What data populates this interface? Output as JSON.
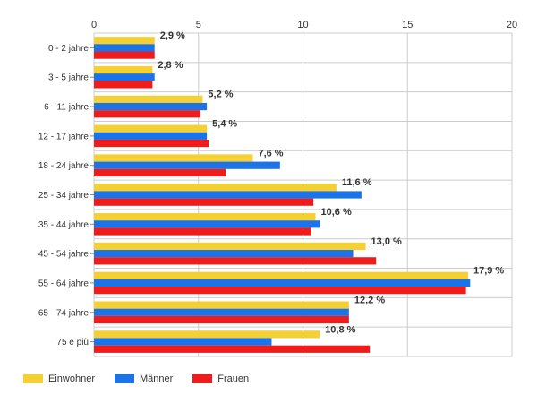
{
  "chart_data": {
    "type": "bar",
    "orientation": "horizontal",
    "categories": [
      "0 - 2 jahre",
      "3 - 5 jahre",
      "6 - 11 jahre",
      "12 - 17 jahre",
      "18 - 24 jahre",
      "25 - 34 jahre",
      "35 - 44 jahre",
      "45 - 54 jahre",
      "55 - 64 jahre",
      "65 - 74 jahre",
      "75 e più"
    ],
    "series": [
      {
        "name": "Einwohner",
        "color": "#f5d033",
        "values": [
          2.9,
          2.8,
          5.2,
          5.4,
          7.6,
          11.6,
          10.6,
          13.0,
          17.9,
          12.2,
          10.8
        ]
      },
      {
        "name": "Männer",
        "color": "#1a73e8",
        "values": [
          2.9,
          2.9,
          5.4,
          5.4,
          8.9,
          12.8,
          10.8,
          12.4,
          18.0,
          12.2,
          8.5
        ]
      },
      {
        "name": "Frauen",
        "color": "#f01b1b",
        "values": [
          2.9,
          2.8,
          5.1,
          5.5,
          6.3,
          10.5,
          10.4,
          13.5,
          17.8,
          12.2,
          13.2
        ]
      }
    ],
    "data_labels": [
      "2,9 %",
      "2,8 %",
      "5,2 %",
      "5,4 %",
      "7,6 %",
      "11,6 %",
      "10,6 %",
      "13,0 %",
      "17,9 %",
      "12,2 %",
      "10,8 %"
    ],
    "xlim": [
      0,
      20
    ],
    "xticks": [
      "0",
      "5",
      "10",
      "15",
      "20"
    ],
    "grid": true,
    "legend_position": "bottom-left"
  }
}
